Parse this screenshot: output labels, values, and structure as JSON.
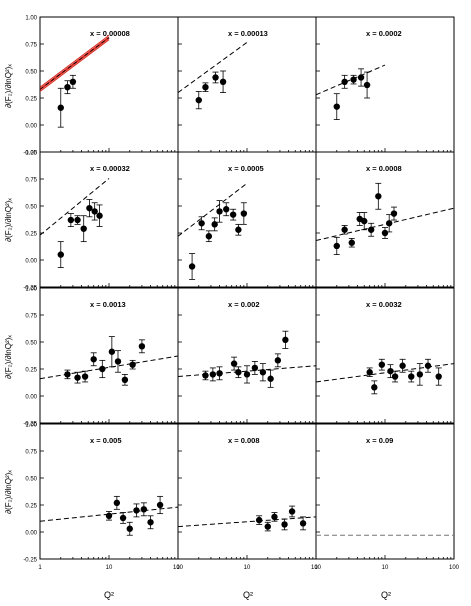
{
  "figure": {
    "ylabel": "∂(F₂)/∂lnQ²)ₓ",
    "xlabel": "Q²"
  },
  "chart_data": {
    "type": "scatter",
    "grid": false,
    "x_scale": "log",
    "x_range": [
      1,
      100
    ],
    "y_range": [
      -0.25,
      1.0
    ],
    "x_tick_labels": [
      "1",
      "10",
      "100"
    ],
    "y_tick_labels": [
      "-0.25",
      "0.00",
      "0.25",
      "0.50",
      "0.75",
      "1.00"
    ],
    "panels": [
      {
        "label": "x = 0.00008",
        "points": [
          [
            2.0,
            0.16,
            0.18
          ],
          [
            2.5,
            0.35,
            0.06
          ],
          [
            3.0,
            0.4,
            0.06
          ]
        ],
        "fit": {
          "y_at_1": 0.33,
          "y_at_100": 1.29,
          "style": "red-band",
          "x_range": [
            1,
            10
          ]
        }
      },
      {
        "label": "x = 0.00013",
        "points": [
          [
            2.0,
            0.23,
            0.08
          ],
          [
            2.5,
            0.35,
            0.04
          ],
          [
            3.5,
            0.44,
            0.05
          ],
          [
            4.5,
            0.4,
            0.1
          ]
        ],
        "fit": {
          "y_at_1": 0.3,
          "y_at_100": 1.23,
          "style": "dashed",
          "x_range": [
            1,
            10
          ]
        }
      },
      {
        "label": "x = 0.0002",
        "points": [
          [
            2.0,
            0.17,
            0.12
          ],
          [
            2.6,
            0.4,
            0.06
          ],
          [
            3.5,
            0.42,
            0.04
          ],
          [
            4.5,
            0.44,
            0.08
          ],
          [
            5.5,
            0.37,
            0.12
          ]
        ],
        "fit": {
          "y_at_1": 0.28,
          "y_at_100": 0.83,
          "style": "dashed",
          "x_range": [
            1,
            10
          ]
        }
      },
      {
        "label": "x = 0.00032",
        "points": [
          [
            2.0,
            0.05,
            0.12
          ],
          [
            2.8,
            0.37,
            0.06
          ],
          [
            3.5,
            0.37,
            0.04
          ],
          [
            4.3,
            0.29,
            0.12
          ],
          [
            5.2,
            0.48,
            0.08
          ],
          [
            6.2,
            0.45,
            0.08
          ],
          [
            7.3,
            0.41,
            0.1
          ]
        ],
        "fit": {
          "y_at_1": 0.23,
          "y_at_100": 1.28,
          "style": "dashed",
          "x_range": [
            1,
            10
          ]
        }
      },
      {
        "label": "x = 0.0005",
        "points": [
          [
            1.6,
            -0.06,
            0.12
          ],
          [
            2.2,
            0.34,
            0.06
          ],
          [
            2.8,
            0.22,
            0.05
          ],
          [
            3.4,
            0.33,
            0.06
          ],
          [
            4.0,
            0.45,
            0.1
          ],
          [
            5.0,
            0.47,
            0.06
          ],
          [
            6.3,
            0.42,
            0.05
          ],
          [
            7.5,
            0.28,
            0.05
          ],
          [
            9.0,
            0.43,
            0.1
          ]
        ],
        "fit": {
          "y_at_1": 0.22,
          "y_at_100": 1.2,
          "style": "dashed",
          "x_range": [
            1,
            10
          ]
        }
      },
      {
        "label": "x = 0.0008",
        "points": [
          [
            2.0,
            0.13,
            0.08
          ],
          [
            2.6,
            0.28,
            0.04
          ],
          [
            3.3,
            0.16,
            0.04
          ],
          [
            4.3,
            0.38,
            0.06
          ],
          [
            5.0,
            0.36,
            0.08
          ],
          [
            6.3,
            0.28,
            0.06
          ],
          [
            8.0,
            0.59,
            0.12
          ],
          [
            10.0,
            0.25,
            0.05
          ],
          [
            11.5,
            0.34,
            0.08
          ],
          [
            13.5,
            0.43,
            0.06
          ]
        ],
        "fit": {
          "y_at_1": 0.18,
          "y_at_100": 0.48,
          "style": "dashed",
          "x_range": [
            1,
            100
          ]
        }
      },
      {
        "label": "x = 0.0013",
        "points": [
          [
            2.5,
            0.2,
            0.04
          ],
          [
            3.5,
            0.17,
            0.05
          ],
          [
            4.5,
            0.18,
            0.05
          ],
          [
            6.0,
            0.34,
            0.06
          ],
          [
            8.0,
            0.25,
            0.08
          ],
          [
            11,
            0.41,
            0.14
          ],
          [
            13.5,
            0.32,
            0.1
          ],
          [
            17,
            0.15,
            0.05
          ],
          [
            22,
            0.29,
            0.04
          ],
          [
            30,
            0.46,
            0.06
          ]
        ],
        "fit": {
          "y_at_1": 0.16,
          "y_at_100": 0.37,
          "style": "dashed",
          "x_range": [
            1,
            100
          ]
        }
      },
      {
        "label": "x = 0.002",
        "points": [
          [
            2.5,
            0.19,
            0.04
          ],
          [
            3.2,
            0.2,
            0.06
          ],
          [
            4.0,
            0.21,
            0.06
          ],
          [
            6.5,
            0.3,
            0.06
          ],
          [
            7.5,
            0.22,
            0.05
          ],
          [
            10,
            0.2,
            0.08
          ],
          [
            13,
            0.26,
            0.06
          ],
          [
            17,
            0.22,
            0.08
          ],
          [
            22,
            0.16,
            0.08
          ],
          [
            28,
            0.33,
            0.06
          ],
          [
            36,
            0.52,
            0.08
          ]
        ],
        "fit": {
          "y_at_1": 0.18,
          "y_at_100": 0.28,
          "style": "dashed",
          "x_range": [
            1,
            100
          ]
        }
      },
      {
        "label": "x = 0.0032",
        "points": [
          [
            6,
            0.22,
            0.04
          ],
          [
            7,
            0.08,
            0.06
          ],
          [
            9,
            0.29,
            0.05
          ],
          [
            12,
            0.23,
            0.06
          ],
          [
            14,
            0.18,
            0.05
          ],
          [
            18,
            0.28,
            0.06
          ],
          [
            24,
            0.18,
            0.05
          ],
          [
            32,
            0.2,
            0.1
          ],
          [
            42,
            0.28,
            0.06
          ],
          [
            60,
            0.18,
            0.08
          ]
        ],
        "fit": {
          "y_at_1": 0.13,
          "y_at_100": 0.3,
          "style": "dashed",
          "x_range": [
            1,
            100
          ]
        }
      },
      {
        "label": "x = 0.005",
        "points": [
          [
            10,
            0.15,
            0.04
          ],
          [
            13,
            0.27,
            0.06
          ],
          [
            16,
            0.13,
            0.05
          ],
          [
            20,
            0.03,
            0.06
          ],
          [
            25,
            0.2,
            0.06
          ],
          [
            32,
            0.21,
            0.06
          ],
          [
            40,
            0.09,
            0.06
          ],
          [
            55,
            0.25,
            0.08
          ]
        ],
        "fit": {
          "y_at_1": 0.1,
          "y_at_100": 0.23,
          "style": "dashed",
          "x_range": [
            1,
            100
          ]
        }
      },
      {
        "label": "x = 0.008",
        "points": [
          [
            15,
            0.11,
            0.04
          ],
          [
            20,
            0.05,
            0.04
          ],
          [
            25,
            0.14,
            0.04
          ],
          [
            35,
            0.07,
            0.05
          ],
          [
            45,
            0.19,
            0.05
          ],
          [
            65,
            0.08,
            0.06
          ]
        ],
        "fit": {
          "y_at_1": 0.05,
          "y_at_100": 0.14,
          "style": "dashed",
          "x_range": [
            1,
            100
          ]
        }
      },
      {
        "label": "x = 0.09",
        "points": [],
        "fit": {
          "y_at_1": -0.03,
          "y_at_100": -0.03,
          "style": "gray-dashed",
          "x_range": [
            1,
            100
          ]
        }
      }
    ]
  }
}
